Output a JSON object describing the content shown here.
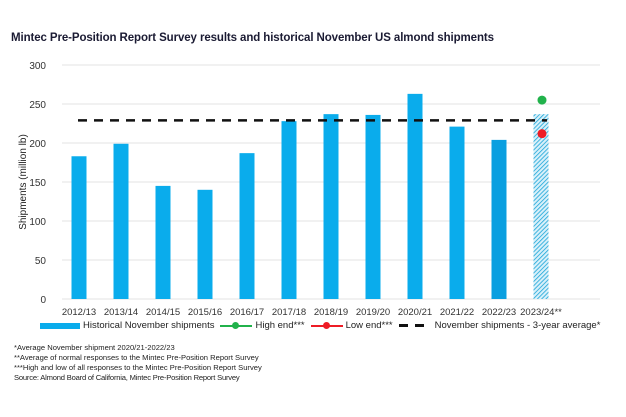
{
  "chart_data": {
    "type": "bar",
    "title": "Mintec Pre-Position Report Survey results and historical November US almond shipments",
    "xlabel": "",
    "ylabel": "Shipments (million lb)",
    "ylim": [
      0,
      300
    ],
    "yticks": [
      0,
      50,
      100,
      150,
      200,
      250,
      300
    ],
    "grid": true,
    "categories": [
      "2012/13",
      "2013/14",
      "2014/15",
      "2015/16",
      "2016/17",
      "2017/18",
      "2018/19",
      "2019/20",
      "2020/21",
      "2021/22",
      "2022/23",
      "2023/24**"
    ],
    "series": [
      {
        "name": "Historical November shipments",
        "type": "bar",
        "color": "#0aacec",
        "values": [
          183,
          199,
          145,
          140,
          187,
          228,
          237,
          236,
          263,
          221,
          204,
          237
        ],
        "hatched_last": true
      },
      {
        "name": "High end***",
        "type": "point",
        "color": "#21b24b",
        "category": "2023/24**",
        "value": 255
      },
      {
        "name": "Low end***",
        "type": "point",
        "color": "#ee1c25",
        "category": "2023/24**",
        "value": 212
      },
      {
        "name": "November shipments - 3-year average*",
        "type": "hline",
        "color": "#111111",
        "value": 229
      }
    ],
    "legend_position": "bottom",
    "legend": [
      {
        "label": "Historical November shipments",
        "kind": "bar",
        "color": "#0aacec"
      },
      {
        "label": "High end***",
        "kind": "line-dot",
        "color": "#21b24b"
      },
      {
        "label": "Low end***",
        "kind": "line-dot",
        "color": "#ee1c25"
      },
      {
        "label": "November shipments - 3-year average*",
        "kind": "dash",
        "color": "#111111"
      }
    ],
    "footnotes": [
      "*Average November shipment 2020/21-2022/23",
      "**Average of normal responses to the Mintec Pre-Position Report Survey",
      "***High and low of all responses to the Mintec Pre-Position Report Survey"
    ],
    "source": "Source: Almond Board of California, Mintec Pre-Position Report Survey"
  }
}
